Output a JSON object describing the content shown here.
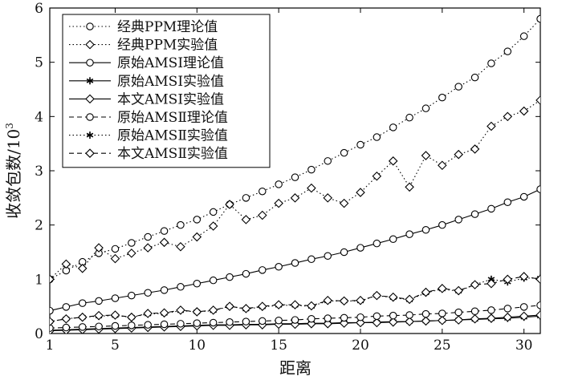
{
  "chart_data": {
    "type": "line",
    "xlabel": "距离",
    "ylabel": "收敛包数/10",
    "ylabel_sup": "3",
    "xlim": [
      1,
      31
    ],
    "ylim": [
      0,
      6
    ],
    "x_ticks": [
      1,
      5,
      10,
      15,
      20,
      25,
      30
    ],
    "y_ticks": [
      0,
      1,
      2,
      3,
      4,
      5,
      6
    ],
    "grid": false,
    "legend_position": "top-left",
    "x": [
      1,
      2,
      3,
      4,
      5,
      6,
      7,
      8,
      9,
      10,
      11,
      12,
      13,
      14,
      15,
      16,
      17,
      18,
      19,
      20,
      21,
      22,
      23,
      24,
      25,
      26,
      27,
      28,
      29,
      30,
      31
    ],
    "series": [
      {
        "name": "经典PPM理论值",
        "line": "dotted",
        "marker": "circle",
        "values": [
          1.0,
          1.16,
          1.32,
          1.48,
          1.56,
          1.67,
          1.78,
          1.89,
          2.0,
          2.1,
          2.24,
          2.38,
          2.5,
          2.62,
          2.75,
          2.88,
          3.02,
          3.18,
          3.33,
          3.48,
          3.62,
          3.8,
          3.98,
          4.15,
          4.35,
          4.55,
          4.72,
          4.98,
          5.2,
          5.48,
          5.8
        ]
      },
      {
        "name": "经典PPM实验值",
        "line": "dotted",
        "marker": "diamond",
        "values": [
          1.0,
          1.28,
          1.2,
          1.58,
          1.38,
          1.48,
          1.58,
          1.68,
          1.6,
          1.78,
          1.98,
          2.38,
          2.1,
          2.18,
          2.4,
          2.5,
          2.68,
          2.5,
          2.4,
          2.6,
          2.9,
          3.18,
          2.7,
          3.28,
          3.1,
          3.3,
          3.4,
          3.82,
          4.0,
          4.1,
          4.3
        ]
      },
      {
        "name": "原始AMSⅠ理论值",
        "line": "solid",
        "marker": "circle",
        "values": [
          0.42,
          0.49,
          0.56,
          0.6,
          0.65,
          0.7,
          0.75,
          0.8,
          0.86,
          0.92,
          0.98,
          1.04,
          1.1,
          1.17,
          1.23,
          1.3,
          1.37,
          1.43,
          1.5,
          1.58,
          1.66,
          1.74,
          1.83,
          1.91,
          2.0,
          2.1,
          2.2,
          2.3,
          2.42,
          2.52,
          2.66
        ]
      },
      {
        "name": "原始AMSⅠ实验值",
        "line": "solid",
        "marker": "star",
        "values": [
          0.06,
          0.07,
          0.08,
          0.09,
          0.1,
          0.11,
          0.12,
          0.13,
          0.14,
          0.15,
          0.16,
          0.16,
          0.17,
          0.17,
          0.18,
          0.18,
          0.19,
          0.19,
          0.2,
          0.2,
          0.21,
          0.22,
          0.22,
          0.23,
          0.24,
          0.25,
          0.26,
          0.27,
          0.28,
          0.3,
          0.32
        ]
      },
      {
        "name": "本文AMSⅠ实验值",
        "line": "solid",
        "marker": "diamond",
        "values": [
          0.05,
          0.06,
          0.07,
          0.08,
          0.09,
          0.1,
          0.11,
          0.12,
          0.13,
          0.14,
          0.15,
          0.15,
          0.16,
          0.16,
          0.17,
          0.17,
          0.18,
          0.18,
          0.19,
          0.2,
          0.2,
          0.21,
          0.22,
          0.23,
          0.24,
          0.25,
          0.27,
          0.28,
          0.3,
          0.32,
          0.34
        ]
      },
      {
        "name": "原始AMSⅡ理论值",
        "line": "dashed",
        "marker": "circle",
        "values": [
          0.1,
          0.11,
          0.12,
          0.13,
          0.14,
          0.15,
          0.16,
          0.17,
          0.18,
          0.19,
          0.2,
          0.21,
          0.22,
          0.23,
          0.24,
          0.25,
          0.27,
          0.28,
          0.29,
          0.3,
          0.32,
          0.33,
          0.34,
          0.36,
          0.37,
          0.39,
          0.41,
          0.43,
          0.46,
          0.49,
          0.52
        ]
      },
      {
        "name": "原始AMSⅡ实验值",
        "line": "dotted",
        "marker": "star",
        "values": [
          0.22,
          0.27,
          0.3,
          0.32,
          0.33,
          0.3,
          0.36,
          0.37,
          0.42,
          0.4,
          0.42,
          0.5,
          0.45,
          0.49,
          0.52,
          0.52,
          0.5,
          0.6,
          0.6,
          0.6,
          0.7,
          0.66,
          0.62,
          0.75,
          0.82,
          0.78,
          0.9,
          1.0,
          0.95,
          1.02,
          1.02
        ]
      },
      {
        "name": "本文AMSⅡ实验值",
        "line": "dashed",
        "marker": "diamond",
        "values": [
          0.22,
          0.27,
          0.3,
          0.33,
          0.34,
          0.3,
          0.37,
          0.38,
          0.43,
          0.4,
          0.43,
          0.5,
          0.46,
          0.5,
          0.53,
          0.53,
          0.51,
          0.61,
          0.6,
          0.61,
          0.7,
          0.67,
          0.63,
          0.76,
          0.83,
          0.79,
          0.9,
          0.92,
          1.0,
          1.05,
          1.0
        ]
      }
    ]
  }
}
